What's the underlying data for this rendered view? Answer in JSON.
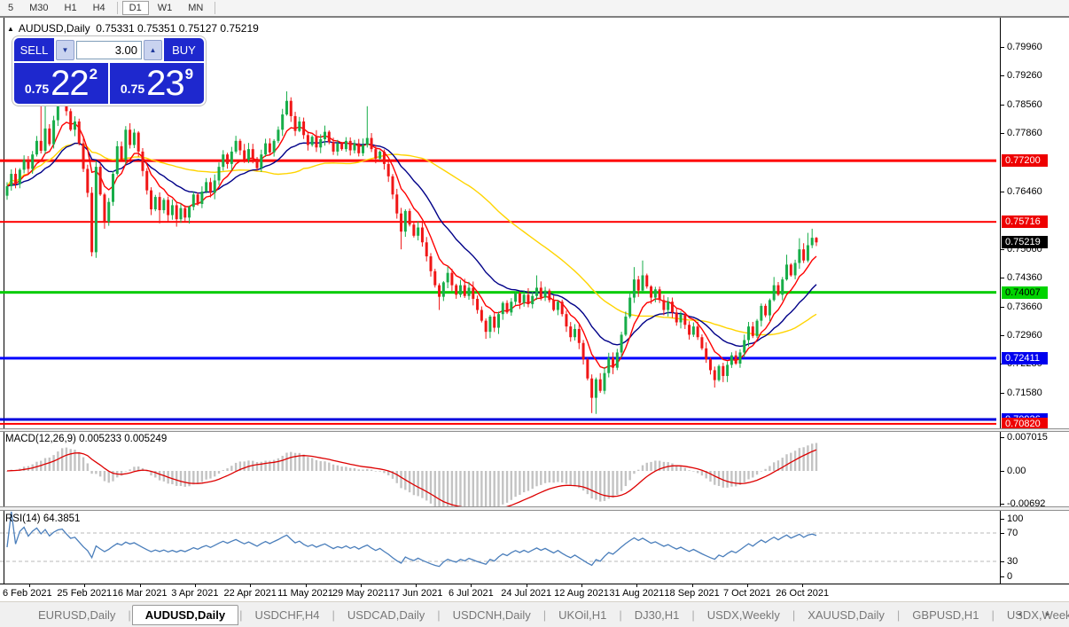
{
  "toolbar": {
    "timeframes": [
      {
        "label": "5",
        "active": false,
        "sep_after": false
      },
      {
        "label": "M30",
        "active": false,
        "sep_after": false
      },
      {
        "label": "H1",
        "active": false,
        "sep_after": false
      },
      {
        "label": "H4",
        "active": false,
        "sep_after": true
      },
      {
        "label": "D1",
        "active": true,
        "sep_after": false
      },
      {
        "label": "W1",
        "active": false,
        "sep_after": false
      },
      {
        "label": "MN",
        "active": false,
        "sep_after": true
      }
    ]
  },
  "chart": {
    "title_symbol": "AUDUSD,Daily",
    "title_ohlc": "0.75331 0.75351 0.75127 0.75219",
    "collapse_arrow": "▲"
  },
  "trade": {
    "sell_label": "SELL",
    "buy_label": "BUY",
    "volume": "3.00",
    "sell_price": {
      "small": "0.75",
      "big": "22",
      "sup": "2"
    },
    "buy_price": {
      "small": "0.75",
      "big": "23",
      "sup": "9"
    }
  },
  "indicators": {
    "macd_label": "MACD(12,26,9) 0.005233 0.005249",
    "rsi_label": "RSI(14) 64.3851"
  },
  "axes": {
    "price_ticks": [
      "0.79960",
      "0.79260",
      "0.78560",
      "0.77860",
      "0.76460",
      "0.75060",
      "0.74360",
      "0.73660",
      "0.72960",
      "0.72280",
      "0.71580"
    ],
    "macd_ticks": [
      {
        "label": "0.007015",
        "value": 0.007015
      },
      {
        "label": "0.00",
        "value": 0
      },
      {
        "label": "-0.00692",
        "value": -0.00692
      }
    ],
    "rsi_ticks": [
      {
        "label": "100",
        "value": 100
      },
      {
        "label": "70",
        "value": 70
      },
      {
        "label": "30",
        "value": 30
      },
      {
        "label": "0",
        "value": 0
      }
    ],
    "dates": [
      "6 Feb 2021",
      "25 Feb 2021",
      "16 Mar 2021",
      "3 Apr 2021",
      "22 Apr 2021",
      "11 May 2021",
      "29 May 2021",
      "17 Jun 2021",
      "6 Jul 2021",
      "24 Jul 2021",
      "12 Aug 2021",
      "31 Aug 2021",
      "18 Sep 2021",
      "7 Oct 2021",
      "26 Oct 2021"
    ]
  },
  "levels": [
    {
      "label": "0.77200",
      "value": 0.772,
      "color": "#ff0000",
      "thickness": 3,
      "badge_bg": "#ee0000",
      "badge_fg": "#ffffff"
    },
    {
      "label": "0.75716",
      "value": 0.75716,
      "color": "#ff0000",
      "thickness": 2,
      "badge_bg": "#ee0000",
      "badge_fg": "#ffffff"
    },
    {
      "label": "0.74007",
      "value": 0.74007,
      "color": "#00cc00",
      "thickness": 3,
      "badge_bg": "#00d400",
      "badge_fg": "#000000"
    },
    {
      "label": "0.72411",
      "value": 0.72411,
      "color": "#0000ff",
      "thickness": 3,
      "badge_bg": "#0000ee",
      "badge_fg": "#ffffff"
    },
    {
      "label": "0.70926",
      "value": 0.70926,
      "color": "#0000dd",
      "thickness": 3,
      "badge_bg": "#0000ee",
      "badge_fg": "#ffffff"
    },
    {
      "label": "0.70820",
      "value": 0.7082,
      "color": "#ff0000",
      "thickness": 2,
      "badge_bg": "#ee0000",
      "badge_fg": "#ffffff"
    }
  ],
  "current_price": {
    "label": "0.75219",
    "value": 0.75219,
    "badge_bg": "#000000",
    "badge_fg": "#ffffff"
  },
  "chart_data": {
    "type": "candlestick",
    "symbol": "AUDUSD",
    "timeframe": "Daily",
    "today_ohlc": {
      "open": 0.75331,
      "high": 0.75351,
      "low": 0.75127,
      "close": 0.75219
    },
    "first_open": 0.7635,
    "closes": [
      0.7658,
      0.7688,
      0.7663,
      0.7698,
      0.7722,
      0.77,
      0.7735,
      0.7768,
      0.7744,
      0.7798,
      0.776,
      0.7818,
      0.7865,
      0.7884,
      0.784,
      0.7795,
      0.7815,
      0.7762,
      0.77,
      0.7642,
      0.7498,
      0.7705,
      0.7638,
      0.7572,
      0.762,
      0.7688,
      0.7755,
      0.7722,
      0.7795,
      0.7758,
      0.7788,
      0.7742,
      0.7695,
      0.7648,
      0.7602,
      0.7632,
      0.76,
      0.7625,
      0.7588,
      0.7612,
      0.7578,
      0.7605,
      0.7582,
      0.7608,
      0.7638,
      0.7615,
      0.7645,
      0.7668,
      0.7642,
      0.7672,
      0.7705,
      0.7735,
      0.7712,
      0.7742,
      0.7768,
      0.7745,
      0.7722,
      0.7748,
      0.7725,
      0.7702,
      0.7735,
      0.7762,
      0.774,
      0.7768,
      0.7795,
      0.7832,
      0.7865,
      0.7828,
      0.7792,
      0.7815,
      0.7782,
      0.7758,
      0.7778,
      0.7752,
      0.7772,
      0.779,
      0.7765,
      0.7742,
      0.7762,
      0.7748,
      0.7768,
      0.7745,
      0.7762,
      0.7738,
      0.7758,
      0.7775,
      0.7748,
      0.7725,
      0.7742,
      0.7712,
      0.7682,
      0.7638,
      0.7592,
      0.7548,
      0.7598,
      0.7565,
      0.7538,
      0.7558,
      0.7522,
      0.7488,
      0.7452,
      0.7418,
      0.739,
      0.7425,
      0.7448,
      0.7418,
      0.7395,
      0.7418,
      0.7392,
      0.7412,
      0.7385,
      0.7358,
      0.7332,
      0.7305,
      0.7342,
      0.7315,
      0.7348,
      0.7375,
      0.7352,
      0.7378,
      0.7398,
      0.7375,
      0.7395,
      0.7372,
      0.7392,
      0.7412,
      0.7388,
      0.7405,
      0.7382,
      0.7358,
      0.7378,
      0.7348,
      0.7318,
      0.7292,
      0.7312,
      0.7278,
      0.7238,
      0.7192,
      0.7145,
      0.719,
      0.7162,
      0.7205,
      0.7242,
      0.7218,
      0.7255,
      0.7298,
      0.7342,
      0.7388,
      0.7432,
      0.7405,
      0.7442,
      0.7415,
      0.7388,
      0.7408,
      0.7382,
      0.7358,
      0.7378,
      0.7352,
      0.7328,
      0.7348,
      0.7322,
      0.7298,
      0.7318,
      0.7292,
      0.7265,
      0.7238,
      0.7212,
      0.7188,
      0.7222,
      0.7198,
      0.7225,
      0.7248,
      0.7228,
      0.7255,
      0.7285,
      0.7318,
      0.7295,
      0.7332,
      0.7368,
      0.7345,
      0.7382,
      0.7418,
      0.7395,
      0.7432,
      0.7468,
      0.7442,
      0.7472,
      0.7505,
      0.7478,
      0.7515,
      0.7533,
      0.75219
    ],
    "wick_overrides": {
      "8": {
        "h": 0.7882
      },
      "9": {
        "h": 0.7868
      },
      "12": {
        "h": 0.7892
      },
      "13": {
        "h": 0.7896
      },
      "20": {
        "l": 0.7488
      },
      "23": {
        "l": 0.7555
      },
      "36": {
        "l": 0.7568
      },
      "40": {
        "l": 0.756
      },
      "66": {
        "h": 0.7888
      },
      "85": {
        "h": 0.7852
      },
      "93": {
        "l": 0.7505
      },
      "102": {
        "l": 0.7358
      },
      "113": {
        "l": 0.7288
      },
      "125": {
        "h": 0.7442
      },
      "138": {
        "l": 0.7108
      },
      "139": {
        "l": 0.7106
      },
      "148": {
        "h": 0.7462
      },
      "150": {
        "h": 0.7478
      },
      "167": {
        "l": 0.717
      },
      "181": {
        "h": 0.7438
      },
      "184": {
        "h": 0.7492
      },
      "187": {
        "h": 0.7532
      },
      "189": {
        "h": 0.7545
      },
      "190": {
        "h": 0.7555,
        "l": 0.7508
      },
      "191": {
        "h": 0.7535,
        "l": 0.7513
      }
    },
    "indicator_params": {
      "ma_fast": 8,
      "ma_mid": 21,
      "ma_slow": 50,
      "macd": [
        12,
        26,
        9
      ],
      "rsi": 14
    },
    "colors": {
      "up": "#17ad49",
      "down": "#f01616",
      "ma_fast": "#ff0000",
      "ma_mid": "#000088",
      "ma_slow": "#ffd400",
      "macd_hist": "#c3c3c3",
      "macd_signal": "#dd0000",
      "rsi": "#4a7ebb",
      "rsi_levels": "#b8b8b8"
    }
  },
  "tabs": {
    "items": [
      {
        "label": "EURUSD,Daily",
        "active": false
      },
      {
        "label": "AUDUSD,Daily",
        "active": true
      },
      {
        "label": "USDCHF,H4",
        "active": false
      },
      {
        "label": "USDCAD,Daily",
        "active": false
      },
      {
        "label": "USDCNH,Daily",
        "active": false
      },
      {
        "label": "UKOil,H1",
        "active": false
      },
      {
        "label": "DJ30,H1",
        "active": false
      },
      {
        "label": "USDX,Weekly",
        "active": false
      },
      {
        "label": "XAUUSD,Daily",
        "active": false
      },
      {
        "label": "GBPUSD,H1",
        "active": false
      },
      {
        "label": "USDX,Weekly",
        "active": false
      }
    ],
    "scroll_left": "◄",
    "scroll_right": "►"
  }
}
